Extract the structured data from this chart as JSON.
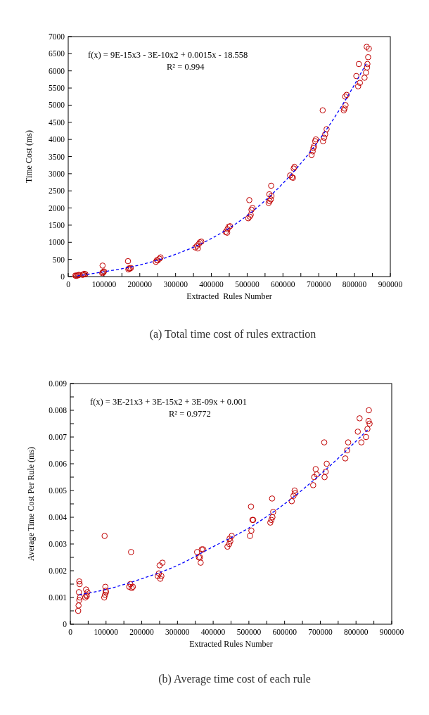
{
  "chart_data": [
    {
      "type": "scatter",
      "title": "(a) Total time cost of rules extraction",
      "xlabel": "Extracted  Rules Number",
      "ylabel": "Time Cost (ms)",
      "annotations": [
        "f(x) = 9E-15x3 - 3E-10x2 + 0.0015x - 18.558",
        "R² = 0.994"
      ],
      "xlim": [
        0,
        900000
      ],
      "xticks": [
        0,
        {
          "value": 50000,
          "label": null
        },
        100000,
        {
          "value": 150000,
          "label": null
        },
        200000,
        {
          "value": 250000,
          "label": null
        },
        300000,
        {
          "value": 350000,
          "label": null
        },
        400000,
        {
          "value": 450000,
          "label": null
        },
        500000,
        {
          "value": 550000,
          "label": null
        },
        600000,
        {
          "value": 650000,
          "label": null
        },
        700000,
        {
          "value": 750000,
          "label": null
        },
        800000,
        {
          "value": 850000,
          "label": null
        },
        900000
      ],
      "ylim": [
        0,
        7000
      ],
      "yticks": [
        0,
        500,
        1000,
        1500,
        2000,
        2500,
        3000,
        3500,
        4000,
        4500,
        5000,
        5500,
        6000,
        6500,
        7000
      ],
      "grid": false,
      "series": [
        {
          "color": "#c00000",
          "marker": "circle",
          "x": [
            22000,
            25000,
            28000,
            30000,
            20000,
            42000,
            45000,
            48000,
            40000,
            95000,
            97000,
            100000,
            98000,
            96000,
            168000,
            172000,
            175000,
            170000,
            167000,
            245000,
            250000,
            255000,
            258000,
            248000,
            355000,
            360000,
            368000,
            372000,
            365000,
            362000,
            440000,
            445000,
            448000,
            452000,
            444000,
            503000,
            507000,
            510000,
            512000,
            515000,
            506000,
            560000,
            563000,
            566000,
            568000,
            562000,
            567000,
            620000,
            625000,
            628000,
            630000,
            632000,
            680000,
            683000,
            687000,
            690000,
            692000,
            685000,
            712000,
            715000,
            718000,
            722000,
            711000,
            770000,
            772000,
            775000,
            778000,
            774000,
            805000,
            810000,
            815000,
            812000,
            828000,
            832000,
            835000,
            836000,
            838000,
            834000,
            840000
          ],
          "values": [
            20,
            30,
            40,
            50,
            30,
            60,
            80,
            70,
            50,
            100,
            130,
            150,
            120,
            320,
            210,
            230,
            250,
            240,
            450,
            430,
            470,
            520,
            560,
            480,
            850,
            900,
            1000,
            1020,
            950,
            820,
            1300,
            1380,
            1450,
            1470,
            1280,
            1700,
            1750,
            1800,
            1950,
            2000,
            2230,
            2150,
            2200,
            2250,
            2350,
            2400,
            2650,
            2950,
            2900,
            2880,
            3150,
            3200,
            3550,
            3650,
            3800,
            3950,
            4000,
            3750,
            3950,
            4050,
            4150,
            4300,
            4850,
            4850,
            4900,
            5000,
            5300,
            5250,
            5850,
            5550,
            5650,
            6200,
            5800,
            5950,
            6100,
            6200,
            6400,
            6700,
            6650
          ]
        },
        {
          "type": "line",
          "color": "#0000ff",
          "line_style": "dashed",
          "x": [
            25000,
            100000,
            200000,
            300000,
            400000,
            500000,
            600000,
            700000,
            800000,
            835000
          ],
          "values": [
            20,
            140,
            340,
            650,
            1110,
            1780,
            2720,
            3970,
            5600,
            6260
          ]
        }
      ]
    },
    {
      "type": "scatter",
      "title": "(b) Average time cost of each rule",
      "xlabel": "Extracted Rules Number",
      "ylabel": "Average Time Cost Per Rule (ms)",
      "annotations": [
        "f(x) = 3E-21x3 + 3E-15x2 + 3E-09x + 0.001",
        "R² = 0.9772"
      ],
      "xlim": [
        0,
        900000
      ],
      "xticks": [
        0,
        {
          "value": 50000,
          "label": null
        },
        100000,
        {
          "value": 150000,
          "label": null
        },
        200000,
        {
          "value": 250000,
          "label": null
        },
        300000,
        {
          "value": 350000,
          "label": null
        },
        400000,
        {
          "value": 450000,
          "label": null
        },
        500000,
        {
          "value": 550000,
          "label": null
        },
        600000,
        {
          "value": 650000,
          "label": null
        },
        700000,
        {
          "value": 750000,
          "label": null
        },
        800000,
        {
          "value": 850000,
          "label": null
        },
        900000
      ],
      "ylim": [
        0,
        0.009
      ],
      "yticks": [
        0,
        {
          "value": 0.0005,
          "label": null
        },
        0.001,
        {
          "value": 0.0015,
          "label": null
        },
        0.002,
        {
          "value": 0.0025,
          "label": null
        },
        0.003,
        {
          "value": 0.0035,
          "label": null
        },
        0.004,
        {
          "value": 0.0045,
          "label": null
        },
        0.005,
        {
          "value": 0.0055,
          "label": null
        },
        0.006,
        {
          "value": 0.0065,
          "label": null
        },
        0.007,
        {
          "value": 0.0075,
          "label": null
        },
        0.008,
        {
          "value": 0.0085,
          "label": null
        },
        0.009
      ],
      "grid": false,
      "series": [
        {
          "color": "#c00000",
          "marker": "circle",
          "x": [
            22000,
            23000,
            25000,
            27000,
            24000,
            26000,
            25000,
            42000,
            45000,
            48000,
            44000,
            46000,
            95000,
            97000,
            100000,
            98000,
            96000,
            99000,
            165000,
            168000,
            172000,
            175000,
            170000,
            245000,
            248000,
            250000,
            255000,
            258000,
            252000,
            355000,
            360000,
            365000,
            368000,
            372000,
            363000,
            440000,
            445000,
            448000,
            452000,
            446000,
            503000,
            507000,
            510000,
            512000,
            506000,
            560000,
            563000,
            566000,
            568000,
            565000,
            620000,
            625000,
            628000,
            630000,
            680000,
            683000,
            687000,
            690000,
            712000,
            715000,
            718000,
            711000,
            770000,
            775000,
            778000,
            805000,
            810000,
            815000,
            828000,
            832000,
            835000,
            836000,
            838000
          ],
          "values": [
            0.0005,
            0.0007,
            0.0009,
            0.001,
            0.0012,
            0.0015,
            0.0016,
            0.001,
            0.0011,
            0.0012,
            0.0013,
            0.00105,
            0.001,
            0.0011,
            0.0012,
            0.0014,
            0.0033,
            0.00125,
            0.0014,
            0.0015,
            0.00135,
            0.0014,
            0.0027,
            0.0018,
            0.0019,
            0.0022,
            0.0018,
            0.0023,
            0.0017,
            0.0027,
            0.0025,
            0.0023,
            0.0028,
            0.0028,
            0.0025,
            0.0029,
            0.003,
            0.0031,
            0.0033,
            0.0032,
            0.0033,
            0.0035,
            0.0039,
            0.0039,
            0.0044,
            0.0038,
            0.0039,
            0.004,
            0.0042,
            0.0047,
            0.0046,
            0.0048,
            0.005,
            0.0049,
            0.0052,
            0.0055,
            0.0058,
            0.0056,
            0.0055,
            0.0057,
            0.006,
            0.0068,
            0.0062,
            0.0065,
            0.0068,
            0.0072,
            0.0077,
            0.0068,
            0.007,
            0.0073,
            0.0076,
            0.008,
            0.0075
          ]
        },
        {
          "type": "line",
          "color": "#0000ff",
          "line_style": "dashed",
          "x": [
            25000,
            100000,
            200000,
            300000,
            400000,
            500000,
            600000,
            700000,
            835000
          ],
          "values": [
            0.0011,
            0.0013,
            0.0017,
            0.0022,
            0.0029,
            0.0036,
            0.0045,
            0.0056,
            0.0073
          ]
        }
      ]
    }
  ]
}
